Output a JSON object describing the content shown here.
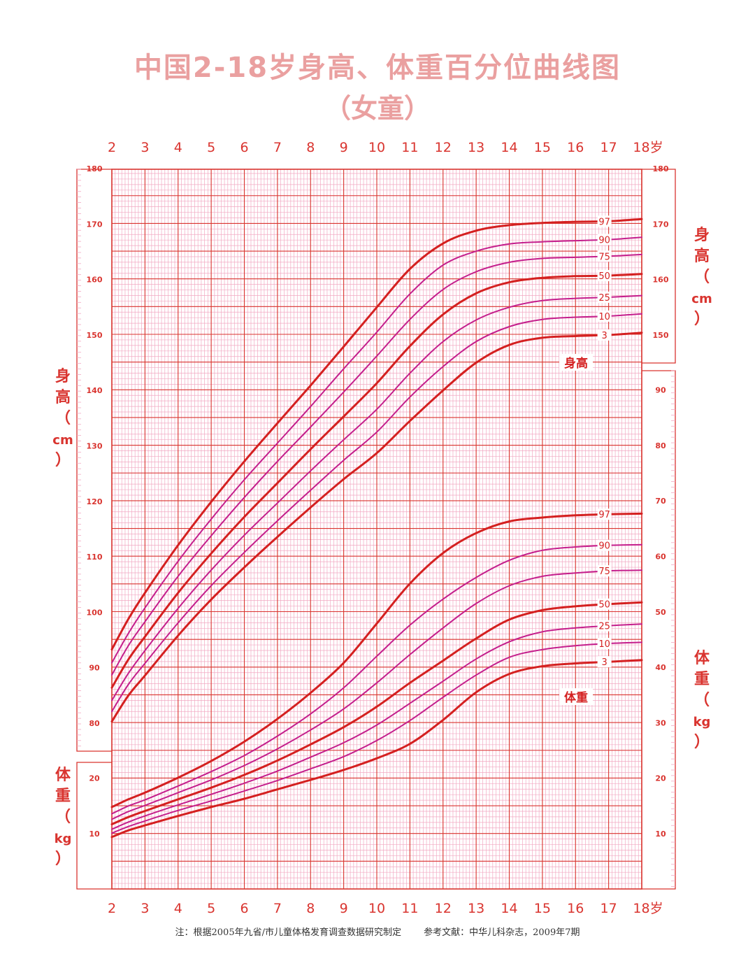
{
  "title": "中国2-18岁身高、体重百分位曲线图",
  "subtitle": "（女童）",
  "colors": {
    "grid_major": "#d9342f",
    "grid_minor": "#f2a8c2",
    "curve_main": "#d42020",
    "curve_mid": "#c41e8c",
    "title": "#eaa0a0"
  },
  "footnote": {
    "left": "注：根据2005年九省/市儿童体格发育调查数据研究制定",
    "right": "参考文献：中华儿科杂志，2009年7期"
  },
  "chart_data": {
    "type": "line",
    "x_ticks": [
      "2",
      "3",
      "4",
      "5",
      "6",
      "7",
      "8",
      "9",
      "10",
      "11",
      "12",
      "13",
      "14",
      "15",
      "16",
      "17",
      "18岁"
    ],
    "x_range": [
      2,
      18
    ],
    "age_unit_label": "岁",
    "height_axis": {
      "label_chars": [
        "身",
        "高",
        "（",
        "cm",
        "）"
      ],
      "ticks": [
        "80",
        "90",
        "100",
        "110",
        "120",
        "130",
        "140",
        "150",
        "160",
        "170",
        "180"
      ],
      "range": [
        80,
        180
      ]
    },
    "weight_axis": {
      "label_chars": [
        "体",
        "重",
        "（",
        "kg",
        "）"
      ],
      "left_ticks": [
        "10",
        "20"
      ],
      "right_ticks": [
        "10",
        "20",
        "30",
        "40",
        "50",
        "60",
        "70",
        "80",
        "90"
      ],
      "range": [
        5,
        95
      ]
    },
    "height_section_label": "身高",
    "weight_section_label": "体重",
    "x": [
      2,
      2.5,
      3,
      4,
      5,
      6,
      7,
      8,
      9,
      10,
      11,
      12,
      13,
      14,
      15,
      16,
      17,
      18
    ],
    "height_series": [
      {
        "name": "3",
        "values": [
          80.3,
          85,
          88.6,
          95.8,
          102.3,
          108.1,
          113.6,
          118.9,
          124,
          128.7,
          134.5,
          140,
          145,
          148.2,
          149.5,
          149.8,
          150,
          150.4
        ]
      },
      {
        "name": "10",
        "values": [
          82.1,
          87,
          90.8,
          98.1,
          104.8,
          110.8,
          116.5,
          122,
          127.4,
          132.5,
          138.8,
          144.3,
          148.8,
          151.5,
          152.8,
          153.2,
          153.4,
          153.8
        ]
      },
      {
        "name": "25",
        "values": [
          84.1,
          89,
          93.1,
          100.7,
          107.6,
          113.9,
          119.7,
          125.5,
          131.1,
          136.6,
          143.1,
          148.8,
          152.7,
          155,
          156.2,
          156.6,
          156.8,
          157.1
        ]
      },
      {
        "name": "50",
        "values": [
          86.4,
          91.5,
          95.6,
          103.5,
          110.6,
          117.2,
          123.3,
          129.4,
          135.3,
          141.3,
          148,
          153.7,
          157.5,
          159.5,
          160.3,
          160.6,
          160.7,
          161
        ]
      },
      {
        "name": "75",
        "values": [
          88.7,
          94,
          98.3,
          106.5,
          113.8,
          120.7,
          127.2,
          133.4,
          139.7,
          146.2,
          152.8,
          158.2,
          161.4,
          163.1,
          163.8,
          164,
          164.2,
          164.5
        ]
      },
      {
        "name": "90",
        "values": [
          90.9,
          96.2,
          100.8,
          109.2,
          116.8,
          123.9,
          130.5,
          137.1,
          143.9,
          150.5,
          157.4,
          162.6,
          165.1,
          166.4,
          166.8,
          167,
          167.2,
          167.6
        ]
      },
      {
        "name": "97",
        "values": [
          93.3,
          98.8,
          103.5,
          112.1,
          119.9,
          127.2,
          134.1,
          140.9,
          147.9,
          155,
          161.9,
          166.5,
          168.8,
          169.8,
          170.2,
          170.4,
          170.5,
          170.9
        ]
      }
    ],
    "weight_series": [
      {
        "name": "3",
        "values": [
          9.4,
          10.6,
          11.5,
          13.2,
          14.8,
          16.3,
          18,
          19.7,
          21.5,
          23.6,
          26.2,
          30.5,
          35.5,
          38.8,
          40.2,
          40.7,
          41,
          41.3
        ]
      },
      {
        "name": "10",
        "values": [
          10.1,
          11.3,
          12.3,
          14.2,
          15.9,
          17.7,
          19.6,
          21.7,
          23.9,
          26.8,
          30.4,
          34.6,
          38.6,
          41.8,
          43.2,
          43.9,
          44.3,
          44.5
        ]
      },
      {
        "name": "25",
        "values": [
          10.8,
          12.1,
          13.2,
          15.2,
          17.1,
          19.1,
          21.3,
          23.8,
          26.4,
          29.6,
          33.5,
          37.5,
          41.5,
          44.6,
          46.4,
          47.1,
          47.5,
          47.8
        ]
      },
      {
        "name": "50",
        "values": [
          11.7,
          13,
          14.1,
          16.2,
          18.3,
          20.6,
          23.2,
          26.1,
          29.2,
          32.9,
          37.2,
          41.2,
          45.2,
          48.6,
          50.3,
          51,
          51.4,
          51.7
        ]
      },
      {
        "name": "75",
        "values": [
          12.6,
          14,
          15.1,
          17.4,
          19.7,
          22.3,
          25.3,
          28.7,
          32.5,
          37.2,
          42.3,
          47.1,
          51.5,
          54.7,
          56.4,
          57,
          57.4,
          57.5
        ]
      },
      {
        "name": "90",
        "values": [
          13.6,
          15,
          16.1,
          18.6,
          21.2,
          24.1,
          27.6,
          31.6,
          36.3,
          42,
          47.6,
          52.3,
          56.2,
          59.3,
          61.1,
          61.7,
          62,
          62.1
        ]
      },
      {
        "name": "97",
        "values": [
          14.8,
          16.2,
          17.4,
          20.1,
          23.1,
          26.6,
          30.7,
          35.4,
          40.8,
          47.9,
          55.1,
          60.6,
          64.2,
          66.3,
          67,
          67.4,
          67.6,
          67.7
        ]
      }
    ],
    "grid": true
  }
}
